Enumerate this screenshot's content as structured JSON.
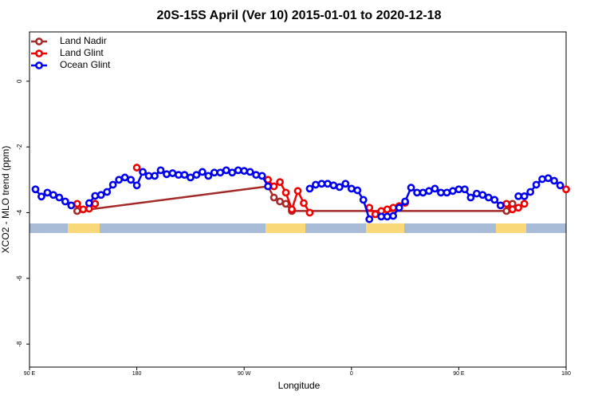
{
  "chart_data": {
    "type": "line",
    "title": "20S-15S April (Ver 10)   2015-01-01 to 2020-12-18",
    "xlabel": "Longitude",
    "ylabel": "XCO2 - MLO trend (ppm)",
    "xlim": [
      90,
      540
    ],
    "ylim": [
      -8.7,
      1.5
    ],
    "xticks": [
      {
        "value": 90,
        "label": "90 E"
      },
      {
        "value": 180,
        "label": "180"
      },
      {
        "value": 270,
        "label": "90 W"
      },
      {
        "value": 360,
        "label": "0"
      },
      {
        "value": 450,
        "label": "90 E"
      },
      {
        "value": 540,
        "label": "180"
      }
    ],
    "yticks": [
      -8,
      -6,
      -4,
      -2,
      0
    ],
    "legend": "top-left",
    "series": [
      {
        "name": "Land Nadir",
        "color": "#a52a2a",
        "x": [
          130,
          290,
          295,
          300,
          305,
          310,
          490,
          495
        ],
        "values": [
          -3.95,
          -3.2,
          -3.54,
          -3.66,
          -3.73,
          -3.95,
          -3.95,
          -3.73
        ]
      },
      {
        "name": "Land Glint",
        "color": "#ee0000",
        "x": [
          130,
          135,
          140,
          145,
          175,
          180,
          285,
          290,
          295,
          300,
          305,
          310,
          315,
          320,
          325,
          370,
          375,
          380,
          385,
          390,
          395,
          400,
          405,
          485,
          490,
          495,
          500,
          505,
          535,
          540
        ],
        "values": [
          -3.73,
          -3.9,
          -3.88,
          -3.73,
          null,
          -2.63,
          null,
          -3.0,
          -3.2,
          -3.07,
          -3.39,
          -3.9,
          -3.34,
          -3.71,
          -4.0,
          null,
          -3.85,
          -4.05,
          -3.95,
          -3.9,
          -3.85,
          -3.8,
          -3.7,
          null,
          -3.73,
          -3.9,
          -3.85,
          -3.73,
          null,
          -3.29
        ]
      },
      {
        "name": "Ocean Glint",
        "color": "#0000ee",
        "x": [
          95,
          100,
          105,
          110,
          115,
          120,
          125,
          130,
          140,
          145,
          150,
          155,
          160,
          165,
          170,
          175,
          180,
          185,
          190,
          195,
          200,
          205,
          210,
          215,
          220,
          225,
          230,
          235,
          240,
          245,
          250,
          255,
          260,
          265,
          270,
          275,
          280,
          285,
          290,
          295,
          325,
          330,
          335,
          340,
          345,
          350,
          355,
          360,
          365,
          370,
          375,
          380,
          385,
          390,
          395,
          400,
          405,
          410,
          415,
          420,
          425,
          430,
          435,
          440,
          445,
          450,
          455,
          460,
          465,
          470,
          475,
          480,
          485,
          490,
          500,
          505,
          510,
          515,
          520,
          525,
          530,
          535,
          540
        ],
        "values": [
          -3.29,
          -3.51,
          -3.39,
          -3.46,
          -3.54,
          -3.66,
          -3.78,
          null,
          -3.71,
          -3.49,
          -3.46,
          -3.37,
          -3.15,
          -3.0,
          -2.93,
          -3.0,
          -3.17,
          -2.76,
          -2.88,
          -2.88,
          -2.71,
          -2.83,
          -2.8,
          -2.85,
          -2.85,
          -2.93,
          -2.85,
          -2.76,
          -2.88,
          -2.78,
          -2.78,
          -2.71,
          -2.78,
          -2.71,
          -2.73,
          -2.76,
          -2.85,
          -2.88,
          -3.2,
          null,
          -3.27,
          -3.15,
          -3.12,
          -3.12,
          -3.17,
          -3.22,
          -3.12,
          -3.27,
          -3.32,
          -3.61,
          -4.2,
          null,
          -4.12,
          -4.12,
          -4.1,
          -3.85,
          -3.66,
          -3.24,
          -3.39,
          -3.39,
          -3.34,
          -3.27,
          -3.39,
          -3.39,
          -3.34,
          -3.29,
          -3.29,
          -3.54,
          -3.42,
          -3.46,
          -3.54,
          -3.61,
          -3.78,
          null,
          -3.5,
          -3.5,
          -3.37,
          -3.15,
          -2.98,
          -2.95,
          -3.03,
          -3.17,
          null
        ]
      }
    ]
  }
}
